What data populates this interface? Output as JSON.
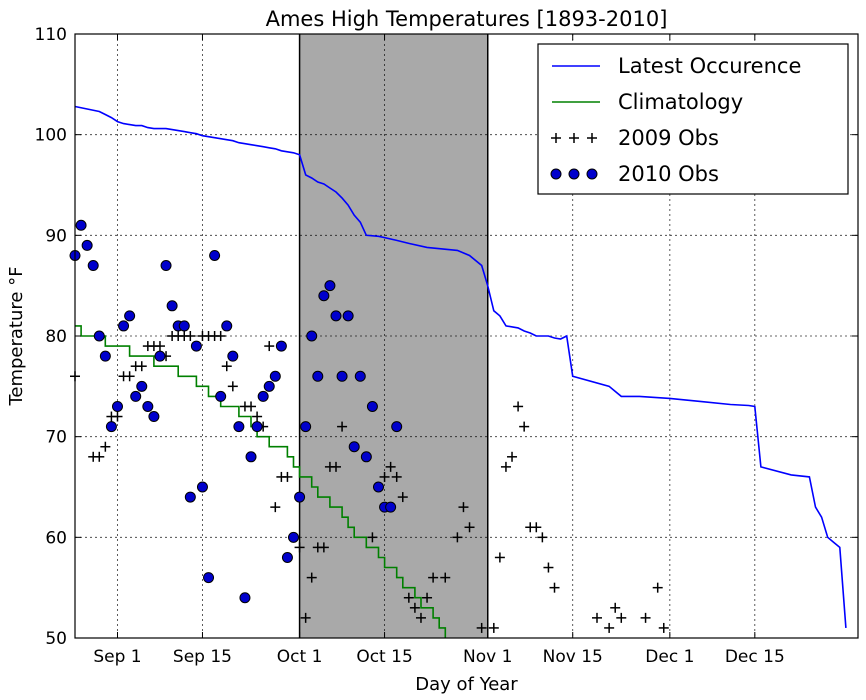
{
  "chart_data": {
    "type": "line",
    "title": "Ames High Temperatures [1893-2010]",
    "xlabel": "Day of Year",
    "ylabel": "Temperature °F",
    "x_unit": "day_of_year",
    "xlim": [
      237,
      366
    ],
    "ylim": [
      50,
      110
    ],
    "yticks": [
      50,
      60,
      70,
      80,
      90,
      100,
      110
    ],
    "xticks": [
      {
        "label": "Sep 1",
        "x": 244
      },
      {
        "label": "Sep 15",
        "x": 258
      },
      {
        "label": "Oct 1",
        "x": 274
      },
      {
        "label": "Oct 15",
        "x": 288
      },
      {
        "label": "Nov 1",
        "x": 305
      },
      {
        "label": "Nov 15",
        "x": 319
      },
      {
        "label": "Dec 1",
        "x": 335
      },
      {
        "label": "Dec 15",
        "x": 349
      }
    ],
    "grid": true,
    "legend_position": "top-right",
    "shaded_band": {
      "x_start": 274,
      "x_end": 305,
      "color": "#a9a9a9"
    },
    "series": [
      {
        "name": "Latest Occurence",
        "kind": "line",
        "color": "#0000ff",
        "points": [
          [
            237,
            102.8
          ],
          [
            241,
            102.3
          ],
          [
            242,
            102.0
          ],
          [
            243,
            101.7
          ],
          [
            244,
            101.3
          ],
          [
            245,
            101.1
          ],
          [
            246,
            101.0
          ],
          [
            247,
            100.9
          ],
          [
            248,
            100.9
          ],
          [
            249,
            100.7
          ],
          [
            250,
            100.6
          ],
          [
            251,
            100.6
          ],
          [
            252,
            100.6
          ],
          [
            253,
            100.5
          ],
          [
            254,
            100.4
          ],
          [
            255,
            100.3
          ],
          [
            256,
            100.2
          ],
          [
            257,
            100.1
          ],
          [
            258,
            99.9
          ],
          [
            259,
            99.8
          ],
          [
            260,
            99.7
          ],
          [
            261,
            99.6
          ],
          [
            262,
            99.5
          ],
          [
            263,
            99.4
          ],
          [
            264,
            99.2
          ],
          [
            265,
            99.1
          ],
          [
            266,
            99.0
          ],
          [
            267,
            98.9
          ],
          [
            268,
            98.8
          ],
          [
            269,
            98.7
          ],
          [
            270,
            98.6
          ],
          [
            271,
            98.4
          ],
          [
            272,
            98.3
          ],
          [
            273,
            98.2
          ],
          [
            274,
            98.0
          ],
          [
            275,
            96.0
          ],
          [
            276,
            95.7
          ],
          [
            277,
            95.3
          ],
          [
            278,
            95.1
          ],
          [
            279,
            94.7
          ],
          [
            280,
            94.3
          ],
          [
            281,
            93.7
          ],
          [
            282,
            93.0
          ],
          [
            283,
            92.0
          ],
          [
            284,
            91.3
          ],
          [
            285,
            90.0
          ],
          [
            287,
            89.9
          ],
          [
            290,
            89.5
          ],
          [
            292,
            89.2
          ],
          [
            295,
            88.8
          ],
          [
            300,
            88.5
          ],
          [
            302,
            88.0
          ],
          [
            304,
            87.0
          ],
          [
            305,
            85.0
          ],
          [
            306,
            82.5
          ],
          [
            307,
            82.0
          ],
          [
            308,
            81.0
          ],
          [
            310,
            80.8
          ],
          [
            311,
            80.5
          ],
          [
            312,
            80.3
          ],
          [
            313,
            80.0
          ],
          [
            315,
            80.0
          ],
          [
            316,
            79.8
          ],
          [
            317,
            79.7
          ],
          [
            318,
            80.0
          ],
          [
            319,
            76.0
          ],
          [
            325,
            75.0
          ],
          [
            326,
            74.5
          ],
          [
            327,
            74.0
          ],
          [
            330,
            74.0
          ],
          [
            335,
            73.8
          ],
          [
            340,
            73.5
          ],
          [
            345,
            73.2
          ],
          [
            348,
            73.1
          ],
          [
            349,
            73.0
          ],
          [
            350,
            67.0
          ],
          [
            355,
            66.2
          ],
          [
            358,
            66.0
          ],
          [
            359,
            63.0
          ],
          [
            360,
            62.0
          ],
          [
            361,
            60.0
          ],
          [
            362,
            59.5
          ],
          [
            363,
            59.0
          ],
          [
            364,
            51.0
          ]
        ]
      },
      {
        "name": "Climatology",
        "kind": "step",
        "color": "#008000",
        "points": [
          [
            237,
            81
          ],
          [
            238,
            80
          ],
          [
            242,
            79
          ],
          [
            245,
            79
          ],
          [
            246,
            78
          ],
          [
            249,
            78
          ],
          [
            250,
            77
          ],
          [
            253,
            77
          ],
          [
            254,
            76
          ],
          [
            256,
            76
          ],
          [
            257,
            75
          ],
          [
            258,
            75
          ],
          [
            259,
            74
          ],
          [
            260,
            74
          ],
          [
            261,
            73
          ],
          [
            263,
            73
          ],
          [
            264,
            72
          ],
          [
            265,
            72
          ],
          [
            266,
            71
          ],
          [
            267,
            70
          ],
          [
            268,
            70
          ],
          [
            269,
            69
          ],
          [
            271,
            69
          ],
          [
            272,
            68
          ],
          [
            273,
            67
          ],
          [
            274,
            66
          ],
          [
            276,
            65
          ],
          [
            277,
            64
          ],
          [
            278,
            64
          ],
          [
            279,
            63
          ],
          [
            280,
            63
          ],
          [
            281,
            62
          ],
          [
            282,
            61
          ],
          [
            283,
            60
          ],
          [
            284,
            60
          ],
          [
            285,
            59
          ],
          [
            286,
            59
          ],
          [
            287,
            58
          ],
          [
            288,
            57
          ],
          [
            289,
            57
          ],
          [
            290,
            56
          ],
          [
            291,
            55
          ],
          [
            292,
            55
          ],
          [
            293,
            54
          ],
          [
            294,
            53
          ],
          [
            295,
            53
          ],
          [
            296,
            52
          ],
          [
            297,
            51
          ],
          [
            298,
            50
          ]
        ]
      },
      {
        "name": "2009 Obs",
        "kind": "plus",
        "color": "#000000",
        "points": [
          [
            237,
            76
          ],
          [
            240,
            68
          ],
          [
            241,
            68
          ],
          [
            242,
            69
          ],
          [
            243,
            72
          ],
          [
            244,
            72
          ],
          [
            245,
            76
          ],
          [
            246,
            76
          ],
          [
            247,
            77
          ],
          [
            248,
            77
          ],
          [
            249,
            79
          ],
          [
            250,
            79
          ],
          [
            251,
            79
          ],
          [
            252,
            78
          ],
          [
            253,
            80
          ],
          [
            254,
            80
          ],
          [
            255,
            80
          ],
          [
            256,
            80
          ],
          [
            257,
            79
          ],
          [
            258,
            80
          ],
          [
            259,
            80
          ],
          [
            260,
            80
          ],
          [
            261,
            80
          ],
          [
            262,
            77
          ],
          [
            263,
            75
          ],
          [
            264,
            71
          ],
          [
            265,
            73
          ],
          [
            266,
            73
          ],
          [
            267,
            72
          ],
          [
            268,
            71
          ],
          [
            269,
            79
          ],
          [
            270,
            63
          ],
          [
            271,
            66
          ],
          [
            272,
            66
          ],
          [
            274,
            59
          ],
          [
            275,
            52
          ],
          [
            276,
            56
          ],
          [
            277,
            59
          ],
          [
            278,
            59
          ],
          [
            279,
            67
          ],
          [
            280,
            67
          ],
          [
            281,
            71
          ],
          [
            286,
            60
          ],
          [
            288,
            66
          ],
          [
            289,
            67
          ],
          [
            290,
            66
          ],
          [
            291,
            64
          ],
          [
            292,
            54
          ],
          [
            293,
            53
          ],
          [
            294,
            52
          ],
          [
            295,
            54
          ],
          [
            296,
            56
          ],
          [
            298,
            56
          ],
          [
            300,
            60
          ],
          [
            301,
            63
          ],
          [
            302,
            61
          ],
          [
            304,
            51
          ],
          [
            306,
            51
          ],
          [
            307,
            58
          ],
          [
            308,
            67
          ],
          [
            309,
            68
          ],
          [
            310,
            73
          ],
          [
            311,
            71
          ],
          [
            312,
            61
          ],
          [
            313,
            61
          ],
          [
            314,
            60
          ],
          [
            315,
            57
          ],
          [
            316,
            55
          ],
          [
            323,
            52
          ],
          [
            325,
            51
          ],
          [
            326,
            53
          ],
          [
            327,
            52
          ],
          [
            331,
            52
          ],
          [
            333,
            55
          ],
          [
            334,
            51
          ]
        ]
      },
      {
        "name": "2010 Obs",
        "kind": "circle",
        "color": "#0000cc",
        "points": [
          [
            237,
            88
          ],
          [
            238,
            91
          ],
          [
            239,
            89
          ],
          [
            240,
            87
          ],
          [
            241,
            80
          ],
          [
            242,
            78
          ],
          [
            243,
            71
          ],
          [
            244,
            73
          ],
          [
            245,
            81
          ],
          [
            246,
            82
          ],
          [
            247,
            74
          ],
          [
            248,
            75
          ],
          [
            249,
            73
          ],
          [
            250,
            72
          ],
          [
            251,
            78
          ],
          [
            252,
            87
          ],
          [
            253,
            83
          ],
          [
            254,
            81
          ],
          [
            255,
            81
          ],
          [
            256,
            64
          ],
          [
            257,
            79
          ],
          [
            258,
            65
          ],
          [
            259,
            56
          ],
          [
            260,
            88
          ],
          [
            261,
            74
          ],
          [
            262,
            81
          ],
          [
            263,
            78
          ],
          [
            264,
            71
          ],
          [
            265,
            54
          ],
          [
            266,
            68
          ],
          [
            267,
            71
          ],
          [
            268,
            74
          ],
          [
            269,
            75
          ],
          [
            270,
            76
          ],
          [
            271,
            79
          ],
          [
            272,
            58
          ],
          [
            273,
            60
          ],
          [
            274,
            64
          ],
          [
            275,
            71
          ],
          [
            276,
            80
          ],
          [
            277,
            76
          ],
          [
            278,
            84
          ],
          [
            279,
            85
          ],
          [
            280,
            82
          ],
          [
            281,
            76
          ],
          [
            282,
            82
          ],
          [
            283,
            69
          ],
          [
            284,
            76
          ],
          [
            285,
            68
          ],
          [
            286,
            73
          ],
          [
            287,
            65
          ],
          [
            288,
            63
          ],
          [
            289,
            63
          ],
          [
            290,
            71
          ]
        ]
      }
    ]
  }
}
